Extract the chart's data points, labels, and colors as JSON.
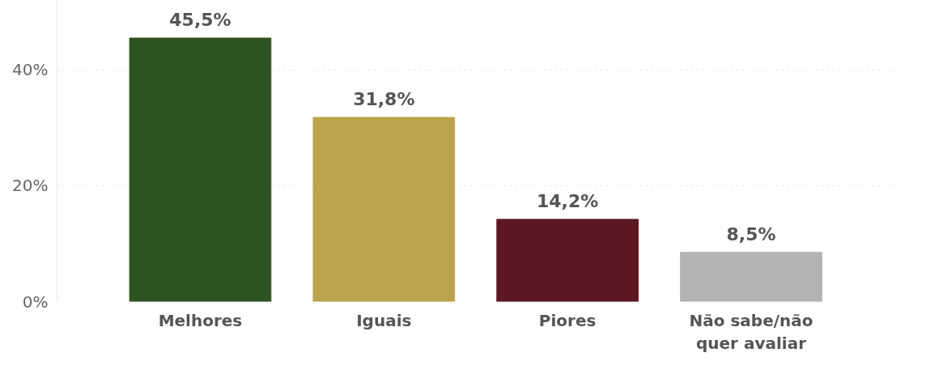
{
  "chart_data": {
    "type": "bar",
    "categories": [
      "Melhores",
      "Iguais",
      "Piores",
      "Não sabe/não quer avaliar"
    ],
    "values": [
      45.5,
      31.8,
      14.2,
      8.5
    ],
    "colors": [
      "#2f5320",
      "#bca44e",
      "#5c1720",
      "#b3b3b3"
    ],
    "value_labels": [
      "45,5%",
      "31,8%",
      "14,2%",
      "8,5%"
    ],
    "ylim": [
      0,
      52
    ],
    "yticks": [
      {
        "value": 0,
        "label": "0%"
      },
      {
        "value": 20,
        "label": "20%"
      },
      {
        "value": 40,
        "label": "40%"
      }
    ],
    "grid": "y"
  }
}
